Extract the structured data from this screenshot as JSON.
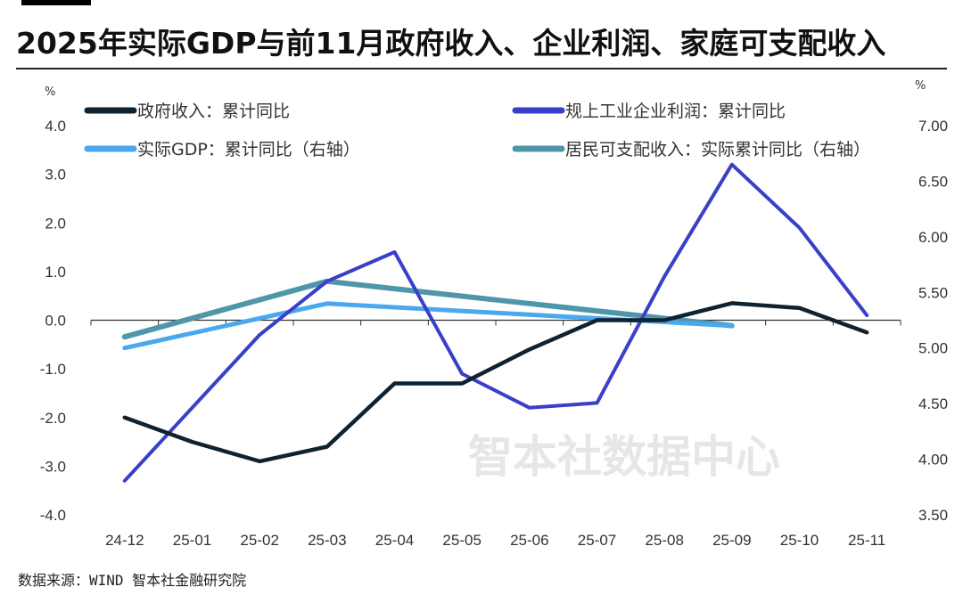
{
  "title": "2025年实际GDP与前11月政府收入、企业利润、家庭可支配收入",
  "source": "数据来源：WIND 智本社金融研究院",
  "watermark": "智本社数据中心",
  "colors": {
    "gov_revenue": "#0f2230",
    "industrial_profit": "#3a3fc9",
    "real_gdp": "#4aa8ee",
    "disposable_income": "#4f96ab"
  },
  "chart_data": {
    "type": "line",
    "categories": [
      "24-12",
      "25-01",
      "25-02",
      "25-03",
      "25-04",
      "25-05",
      "25-06",
      "25-07",
      "25-08",
      "25-09",
      "25-10",
      "25-11"
    ],
    "left_axis": {
      "unit": "%",
      "ylim": [
        -4.0,
        4.0
      ],
      "ticks": [
        "4.0",
        "3.0",
        "2.0",
        "1.0",
        "0.0",
        "-1.0",
        "-2.0",
        "-3.0",
        "-4.0"
      ]
    },
    "right_axis": {
      "unit": "%",
      "ylim": [
        3.5,
        7.0
      ],
      "ticks": [
        "7.00",
        "6.50",
        "6.00",
        "5.50",
        "5.00",
        "4.50",
        "4.00",
        "3.50"
      ]
    },
    "grid": false,
    "legend_position": "top",
    "series": [
      {
        "name": "政府收入：累计同比",
        "axis": "left",
        "color_key": "gov_revenue",
        "values": [
          -2.0,
          -2.5,
          -2.9,
          -2.6,
          -1.3,
          -1.3,
          -0.6,
          0.0,
          0.0,
          0.35,
          0.25,
          -0.25
        ]
      },
      {
        "name": "规上工业企业利润：累计同比",
        "axis": "left",
        "color_key": "industrial_profit",
        "values": [
          -3.3,
          -1.8,
          -0.3,
          0.8,
          1.4,
          -1.1,
          -1.8,
          -1.7,
          0.9,
          3.2,
          1.9,
          0.1
        ]
      },
      {
        "name": "实际GDP：累计同比（右轴）",
        "axis": "right",
        "color_key": "real_gdp",
        "values": [
          5.0,
          null,
          null,
          5.4,
          null,
          null,
          5.3,
          null,
          null,
          5.2,
          null,
          null
        ]
      },
      {
        "name": "居民可支配收入：实际累计同比（右轴）",
        "axis": "right",
        "color_key": "disposable_income",
        "values": [
          5.1,
          null,
          null,
          5.6,
          null,
          null,
          5.4,
          null,
          null,
          5.2,
          null,
          null
        ]
      }
    ]
  }
}
